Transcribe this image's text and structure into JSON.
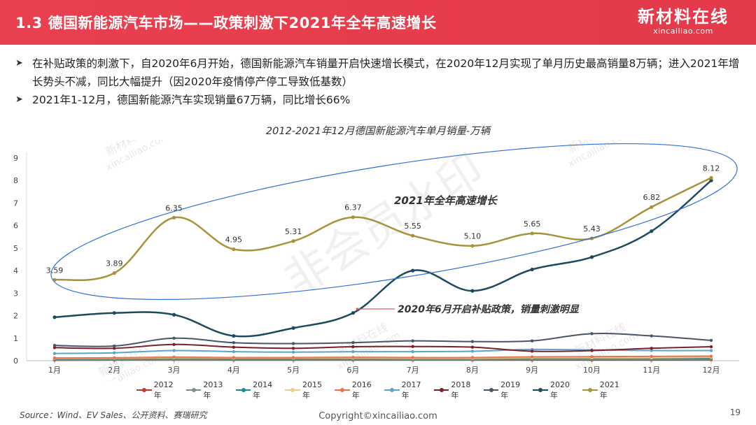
{
  "header": {
    "title": "1.3 德国新能源汽车市场——政策刺激下2021年全年高速增长",
    "logo_cn": "新材料在线",
    "logo_en": "xincailiao.com"
  },
  "bullets": [
    "在补贴政策的刺激下，自2020年6月开始，德国新能源汽车销量开启快速增长模式，在2020年12月实现了单月历史最高销量8万辆；进入2021年增长势头不减，同比大幅提升（因2020年疫情停产停工导致低基数）",
    "2021年1-12月，德国新能源汽车实现销量67万辆，同比增长66%"
  ],
  "chart_data": {
    "type": "line",
    "title": "2012-2021年12月德国新能源汽车单月销量-万辆",
    "categories": [
      "1月",
      "2月",
      "3月",
      "4月",
      "5月",
      "6月",
      "7月",
      "8月",
      "9月",
      "10月",
      "11月",
      "12月"
    ],
    "y_ticks": [
      "0",
      "1",
      "2",
      "3",
      "4",
      "5",
      "6",
      "7",
      "8",
      "9"
    ],
    "ylim": [
      0,
      9
    ],
    "grid": false,
    "legend_position": "bottom",
    "series": [
      {
        "name": "2012年",
        "color": "#c0392b",
        "values": [
          0.02,
          0.03,
          0.04,
          0.03,
          0.03,
          0.03,
          0.03,
          0.03,
          0.03,
          0.03,
          0.03,
          0.04
        ]
      },
      {
        "name": "2013年",
        "color": "#7f8c8d",
        "values": [
          0.04,
          0.05,
          0.06,
          0.05,
          0.05,
          0.05,
          0.05,
          0.05,
          0.06,
          0.06,
          0.06,
          0.07
        ]
      },
      {
        "name": "2014年",
        "color": "#1f8a8a",
        "values": [
          0.07,
          0.08,
          0.1,
          0.09,
          0.09,
          0.09,
          0.09,
          0.09,
          0.1,
          0.1,
          0.1,
          0.11
        ]
      },
      {
        "name": "2015年",
        "color": "#e8d08a",
        "values": [
          0.1,
          0.11,
          0.13,
          0.12,
          0.12,
          0.12,
          0.11,
          0.11,
          0.13,
          0.13,
          0.13,
          0.15
        ]
      },
      {
        "name": "2016年",
        "color": "#e8734a",
        "values": [
          0.12,
          0.13,
          0.16,
          0.14,
          0.14,
          0.15,
          0.14,
          0.14,
          0.17,
          0.18,
          0.19,
          0.2
        ]
      },
      {
        "name": "2017年",
        "color": "#5da5c8",
        "values": [
          0.32,
          0.35,
          0.45,
          0.4,
          0.38,
          0.4,
          0.4,
          0.42,
          0.5,
          0.48,
          0.45,
          0.45
        ]
      },
      {
        "name": "2018年",
        "color": "#7b1f2e",
        "values": [
          0.58,
          0.55,
          0.72,
          0.6,
          0.55,
          0.62,
          0.63,
          0.6,
          0.42,
          0.45,
          0.55,
          0.62
        ]
      },
      {
        "name": "2019年",
        "color": "#4a5566",
        "values": [
          0.68,
          0.65,
          1.0,
          0.8,
          0.76,
          0.8,
          0.88,
          0.85,
          0.88,
          1.2,
          1.1,
          0.9
        ]
      },
      {
        "name": "2020年",
        "color": "#1c4a5e",
        "values": [
          1.93,
          2.12,
          2.04,
          1.1,
          1.45,
          2.12,
          4.0,
          3.1,
          4.05,
          4.6,
          5.75,
          8.0
        ]
      },
      {
        "name": "2021年",
        "color": "#a8923d",
        "values": [
          3.59,
          3.89,
          6.35,
          4.95,
          5.31,
          6.37,
          5.55,
          5.1,
          5.65,
          5.43,
          6.82,
          8.12
        ]
      }
    ],
    "data_labels_2021": [
      "3.59",
      "3.89",
      "6.35",
      "4.95",
      "5.31",
      "6.37",
      "5.55",
      "5.10",
      "5.65",
      "5.43",
      "6.82",
      "8.12"
    ],
    "annotations": [
      "2021年全年高速增长",
      "2020年6月开启补贴政策，销量刺激明显"
    ]
  },
  "watermarks": [
    "新材料在线",
    "xincailiao.com",
    "非会员水印"
  ],
  "colors": {
    "header": "#e9404f",
    "ellipse": "#2f6fd6",
    "pointer": "#e05a63"
  },
  "footer": {
    "source": "Source：Wind、EV Sales、公开资料、赛瑞研究",
    "copyright": "Copyright©xincailiao.com",
    "page": "19"
  }
}
